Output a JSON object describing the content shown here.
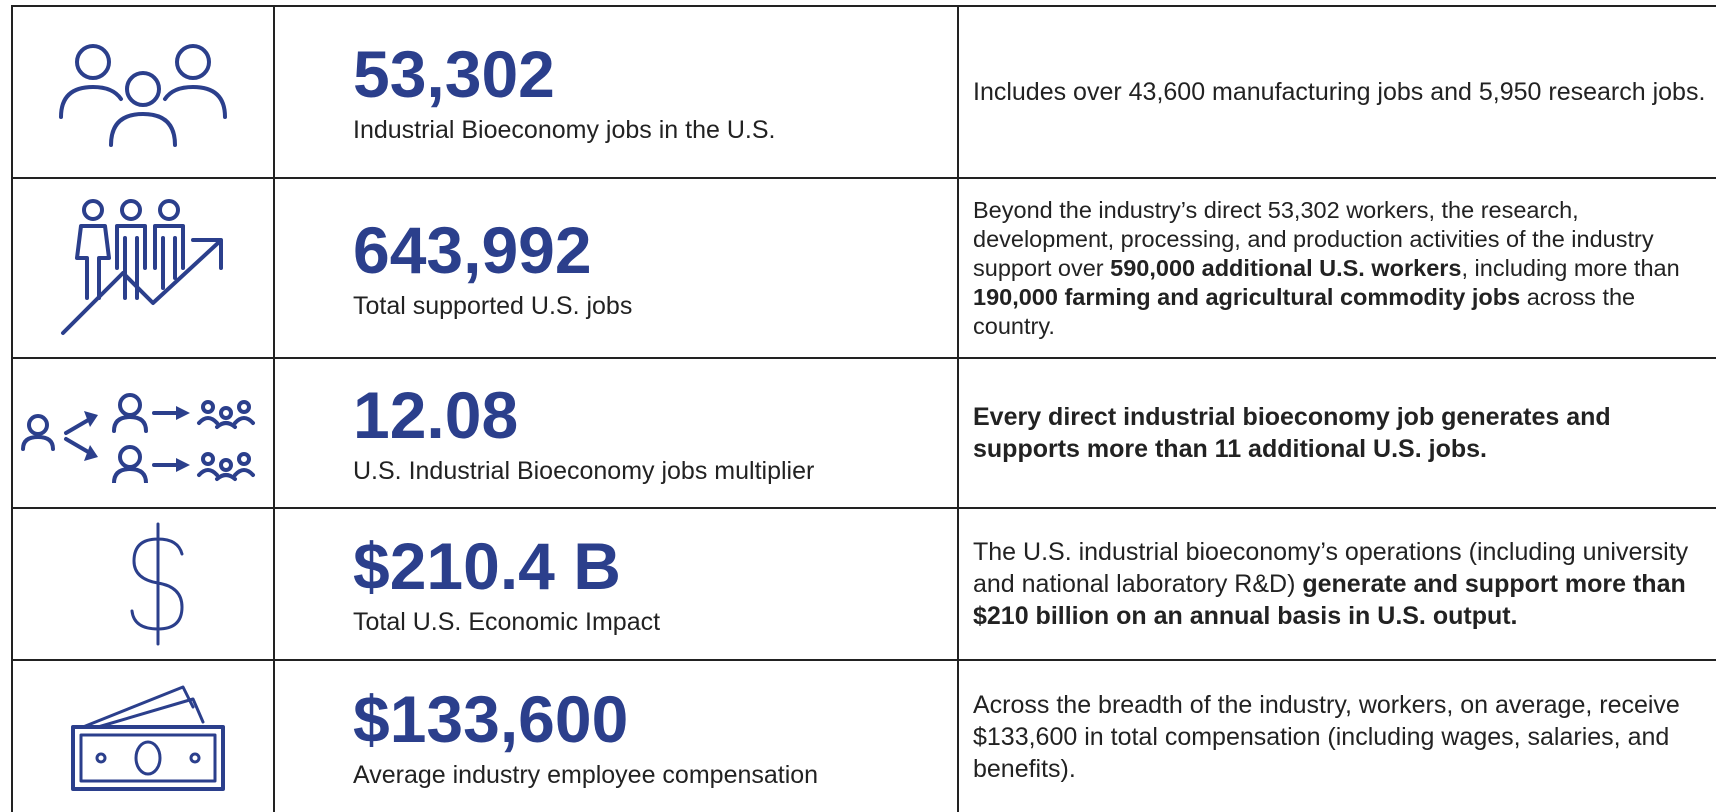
{
  "table": {
    "rows": [
      {
        "value": "53,302",
        "label": "Industrial Bioeconomy jobs in the U.S.",
        "description": [
          {
            "text": "Includes over 43,600 manufacturing jobs and 5,950 research jobs.",
            "bold": false
          }
        ]
      },
      {
        "value": "643,992",
        "label": "Total supported U.S. jobs",
        "description": [
          {
            "text": "Beyond the industry’s direct 53,302 workers, the research, development, processing, and production activities of the industry support over ",
            "bold": false
          },
          {
            "text": "590,000 additional U.S. workers",
            "bold": true
          },
          {
            "text": ", including more than ",
            "bold": false
          },
          {
            "text": "190,000 farming and agricultural commodity jobs",
            "bold": true
          },
          {
            "text": " across the country.",
            "bold": false
          }
        ]
      },
      {
        "value": "12.08",
        "label": "U.S. Industrial Bioeconomy jobs multiplier",
        "description": [
          {
            "text": "Every direct industrial bioeconomy job generates and supports more than 11 additional U.S. jobs.",
            "bold": true
          }
        ]
      },
      {
        "value": "$210.4 B",
        "label": "Total U.S. Economic Impact",
        "description": [
          {
            "text": "The U.S. industrial bioeconomy’s operations (including university and national laboratory R&D) ",
            "bold": false
          },
          {
            "text": "generate and support more than $210 billion on an annual basis in U.S. output.",
            "bold": true
          }
        ]
      },
      {
        "value": "$133,600",
        "label": "Average industry employee compensation",
        "description": [
          {
            "text": "Across the breadth of the industry, workers, on average, receive $133,600 in total compensation (including wages, salaries, and benefits).",
            "bold": false
          }
        ]
      }
    ]
  }
}
